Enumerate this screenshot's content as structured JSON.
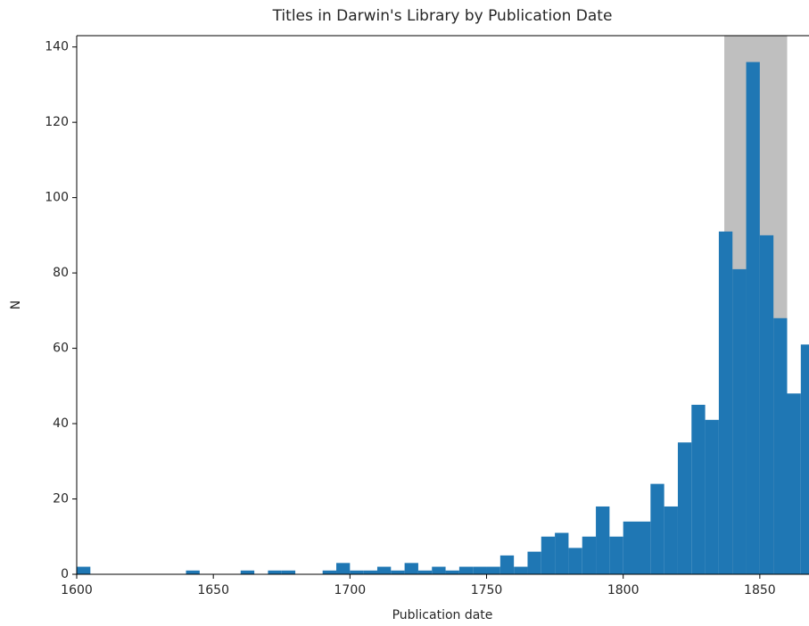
{
  "chart_data": {
    "type": "histogram",
    "title": "Titles in Darwin's Library by Publication Date",
    "x_label": "Publication date",
    "y_label": "N",
    "bins": [
      1600,
      1605,
      1610,
      1615,
      1620,
      1625,
      1630,
      1635,
      1640,
      1645,
      1650,
      1655,
      1660,
      1665,
      1670,
      1675,
      1680,
      1685,
      1690,
      1695,
      1700,
      1705,
      1710,
      1715,
      1720,
      1725,
      1730,
      1735,
      1740,
      1745,
      1750,
      1755,
      1760,
      1765,
      1770,
      1775,
      1780,
      1785,
      1790,
      1795,
      1800,
      1805,
      1810,
      1815,
      1820,
      1825,
      1830,
      1835,
      1840,
      1845,
      1850,
      1855,
      1860,
      1865,
      1870
    ],
    "counts": [
      2,
      0,
      0,
      0,
      0,
      0,
      0,
      0,
      1,
      0,
      0,
      0,
      1,
      0,
      1,
      1,
      0,
      0,
      1,
      3,
      1,
      1,
      2,
      1,
      3,
      1,
      2,
      1,
      2,
      2,
      2,
      5,
      2,
      6,
      10,
      11,
      7,
      10,
      18,
      10,
      14,
      14,
      24,
      18,
      35,
      45,
      41,
      91,
      81,
      136,
      90,
      68,
      48,
      61
    ],
    "color": "#1f77b4",
    "highlight_span": {
      "x": [
        1837,
        1860
      ],
      "color": "#bfbfbf"
    },
    "xlim": [
      1600,
      1868
    ],
    "xticks": [
      1600,
      1650,
      1700,
      1750,
      1800,
      1850
    ],
    "ylim": [
      0,
      143
    ],
    "yticks": [
      0,
      20,
      40,
      60,
      80,
      100,
      120,
      140
    ],
    "grid": false
  }
}
